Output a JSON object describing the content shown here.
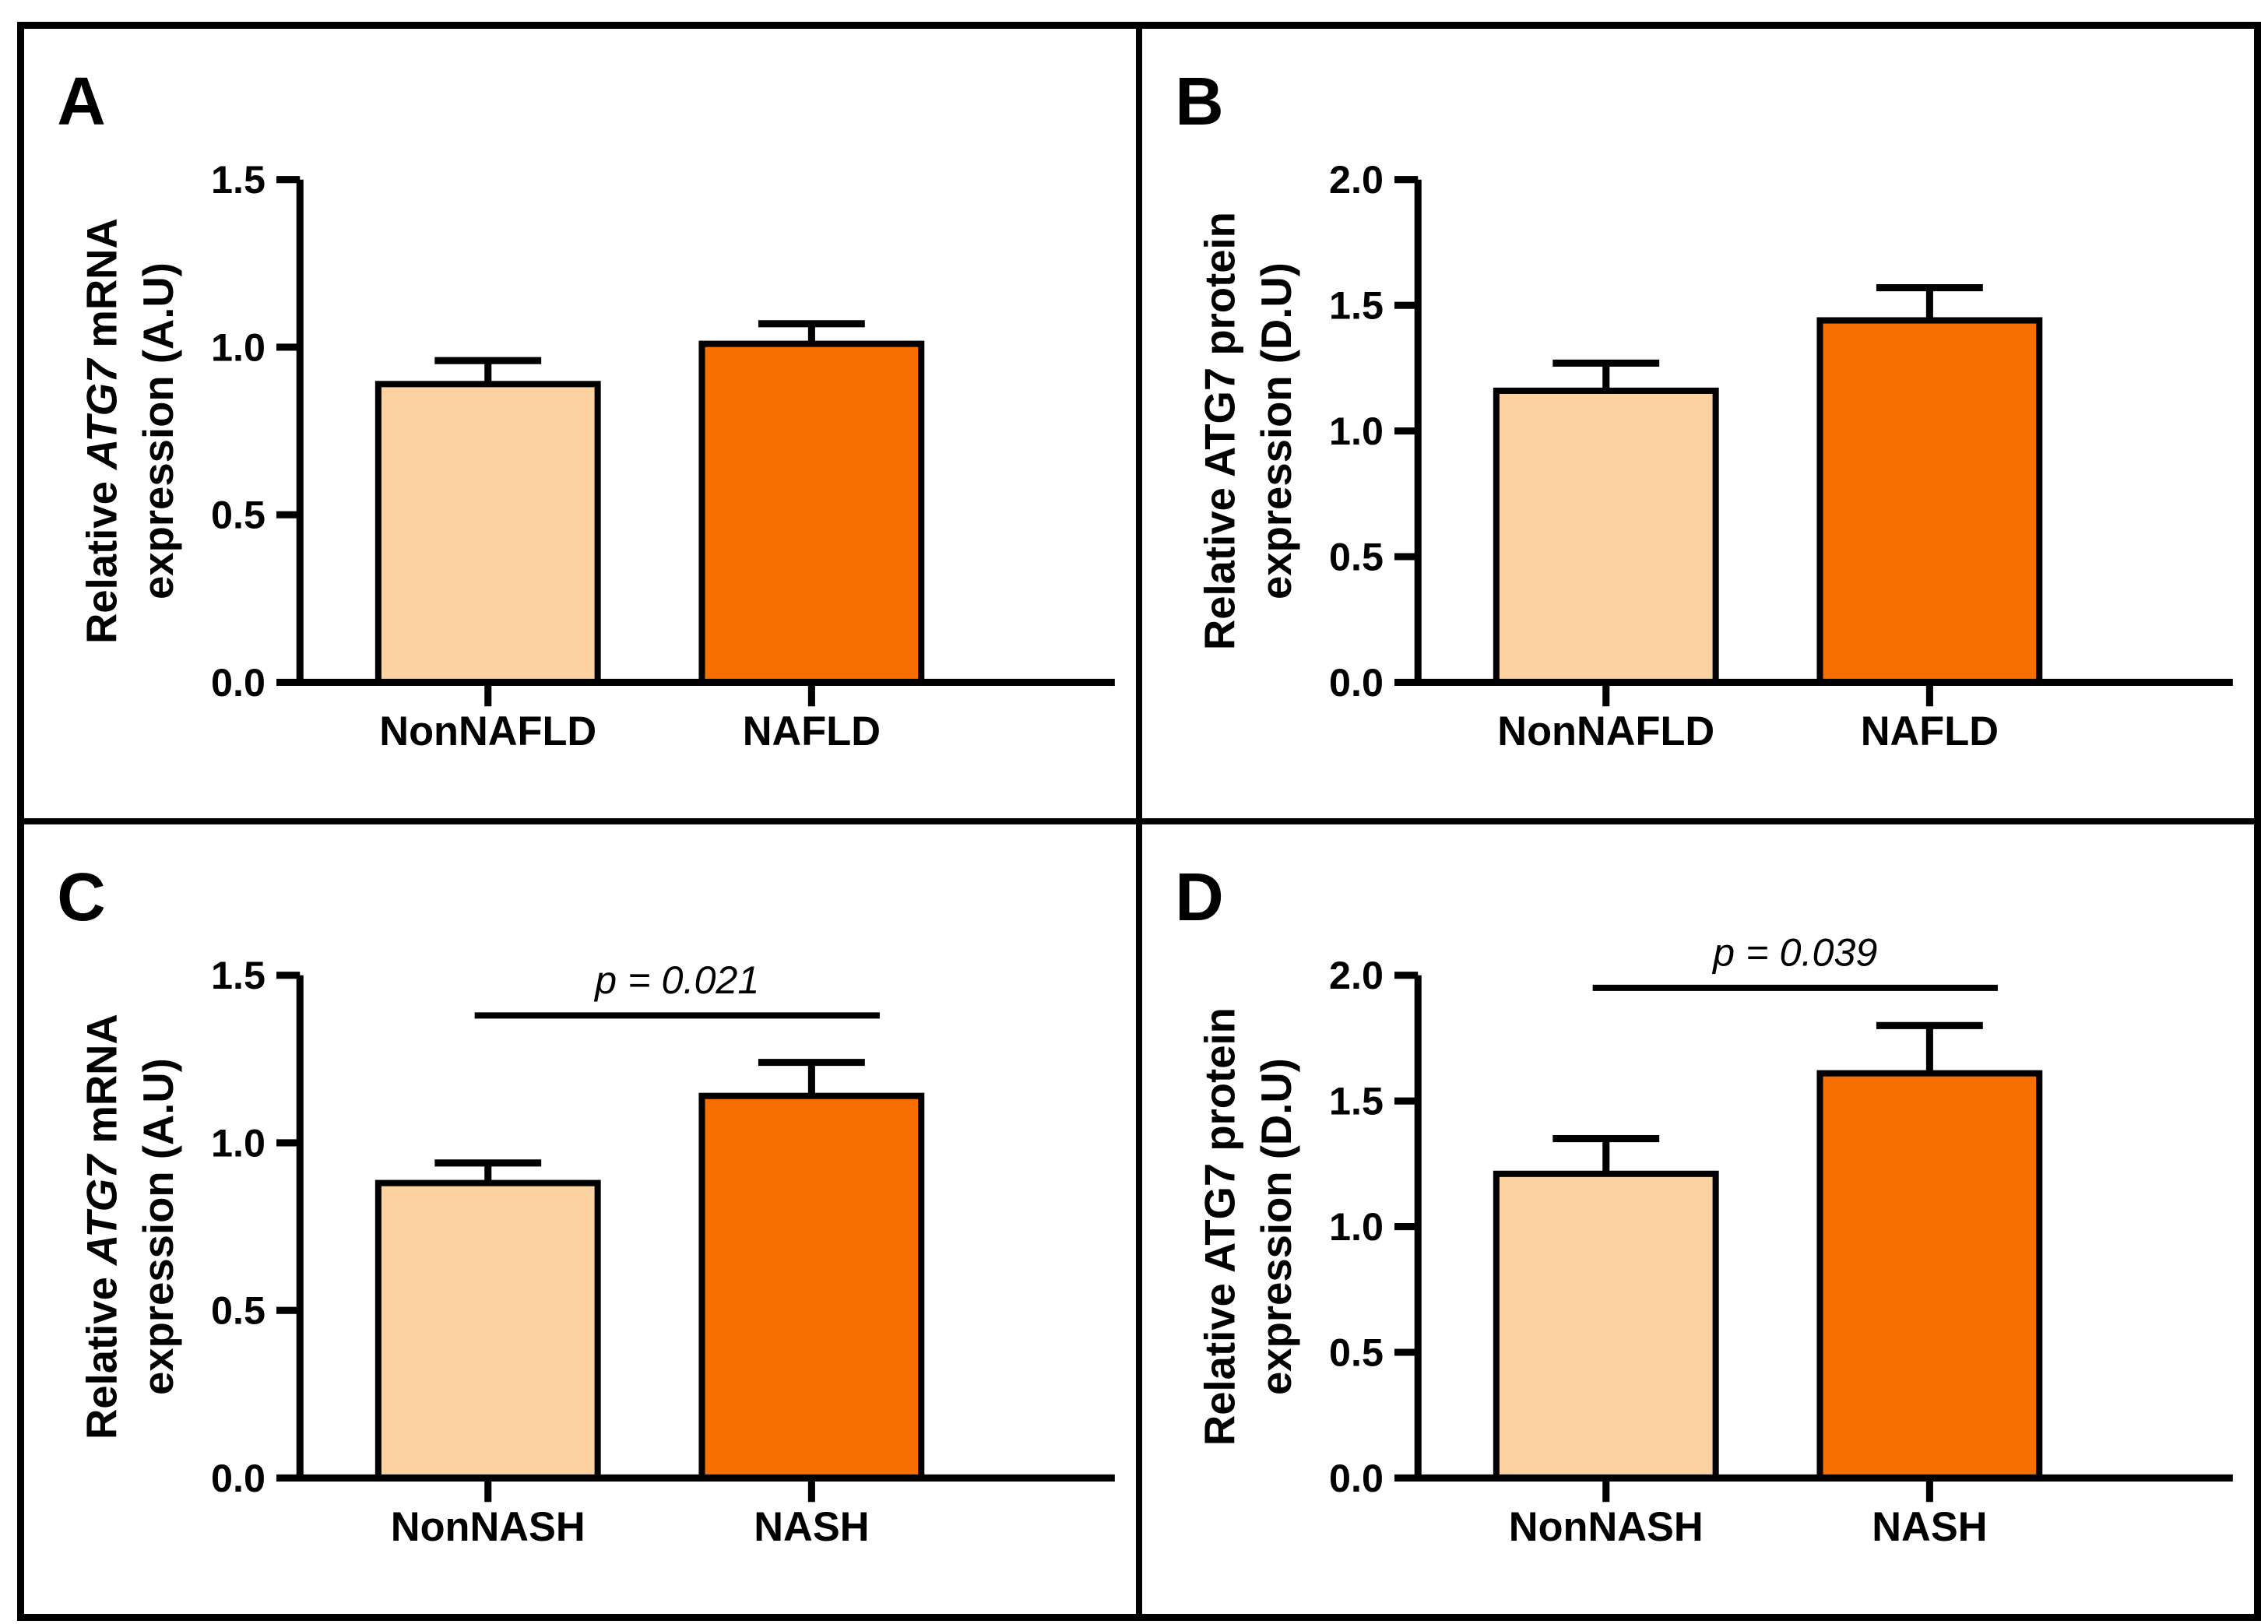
{
  "figure": {
    "background": "#ffffff",
    "frame_color": "#000000",
    "bar_fill_light": "#FCD2A0",
    "bar_fill_dark": "#F76F00",
    "bar_stroke": "#000000",
    "panel_letters": [
      "A",
      "B",
      "C",
      "D"
    ]
  },
  "chart_data": [
    {
      "type": "bar",
      "panel_label": "A",
      "title": "",
      "xlabel": "",
      "ylabel": "Relative ATG7 mRNA expression (A.U)",
      "ylabel_lines": [
        [
          {
            "text": "Relative ",
            "italic": false
          },
          {
            "text": "ATG7",
            "italic": true
          },
          {
            "text": " mRNA",
            "italic": false
          }
        ],
        [
          {
            "text": "expression (A.U)",
            "italic": false
          }
        ]
      ],
      "categories": [
        "NonNAFLD",
        "NAFLD"
      ],
      "values": [
        0.89,
        1.01
      ],
      "error_top": [
        0.96,
        1.07
      ],
      "ylim": [
        0,
        1.5
      ],
      "ytick_interval": 0.5,
      "ytick_labels": [
        "0.0",
        "0.5",
        "1.0",
        "1.5"
      ],
      "bar_colors": [
        "light",
        "dark"
      ],
      "grid": false,
      "legend": null,
      "significance": null
    },
    {
      "type": "bar",
      "panel_label": "B",
      "title": "",
      "xlabel": "",
      "ylabel": "Relative ATG7 protein expression (D.U)",
      "ylabel_lines": [
        [
          {
            "text": "Relative ATG7 protein",
            "italic": false
          }
        ],
        [
          {
            "text": "expression (D.U)",
            "italic": false
          }
        ]
      ],
      "categories": [
        "NonNAFLD",
        "NAFLD"
      ],
      "values": [
        1.16,
        1.44
      ],
      "error_top": [
        1.27,
        1.57
      ],
      "ylim": [
        0,
        2.0
      ],
      "ytick_interval": 0.5,
      "ytick_labels": [
        "0.0",
        "0.5",
        "1.0",
        "1.5",
        "2.0"
      ],
      "bar_colors": [
        "light",
        "dark"
      ],
      "grid": false,
      "legend": null,
      "significance": null
    },
    {
      "type": "bar",
      "panel_label": "C",
      "title": "",
      "xlabel": "",
      "ylabel": "Relative ATG7 mRNA expression (A.U)",
      "ylabel_lines": [
        [
          {
            "text": "Relative ",
            "italic": false
          },
          {
            "text": "ATG7",
            "italic": true
          },
          {
            "text": " mRNA",
            "italic": false
          }
        ],
        [
          {
            "text": "expression (A.U)",
            "italic": false
          }
        ]
      ],
      "categories": [
        "NonNASH",
        "NASH"
      ],
      "values": [
        0.88,
        1.14
      ],
      "error_top": [
        0.94,
        1.24
      ],
      "ylim": [
        0,
        1.5
      ],
      "ytick_interval": 0.5,
      "ytick_labels": [
        "0.0",
        "0.5",
        "1.0",
        "1.5"
      ],
      "bar_colors": [
        "light",
        "dark"
      ],
      "grid": false,
      "legend": null,
      "significance": {
        "p_label": "p = 0.021",
        "line_value": 1.38
      }
    },
    {
      "type": "bar",
      "panel_label": "D",
      "title": "",
      "xlabel": "",
      "ylabel": "Relative ATG7 protein expression (D.U)",
      "ylabel_lines": [
        [
          {
            "text": "Relative ATG7 protein",
            "italic": false
          }
        ],
        [
          {
            "text": "expression (D.U)",
            "italic": false
          }
        ]
      ],
      "categories": [
        "NonNASH",
        "NASH"
      ],
      "values": [
        1.21,
        1.61
      ],
      "error_top": [
        1.35,
        1.8
      ],
      "ylim": [
        0,
        2.0
      ],
      "ytick_interval": 0.5,
      "ytick_labels": [
        "0.0",
        "0.5",
        "1.0",
        "1.5",
        "2.0"
      ],
      "bar_colors": [
        "light",
        "dark"
      ],
      "grid": false,
      "legend": null,
      "significance": {
        "p_label": "p = 0.039",
        "line_value": 1.95
      }
    }
  ]
}
